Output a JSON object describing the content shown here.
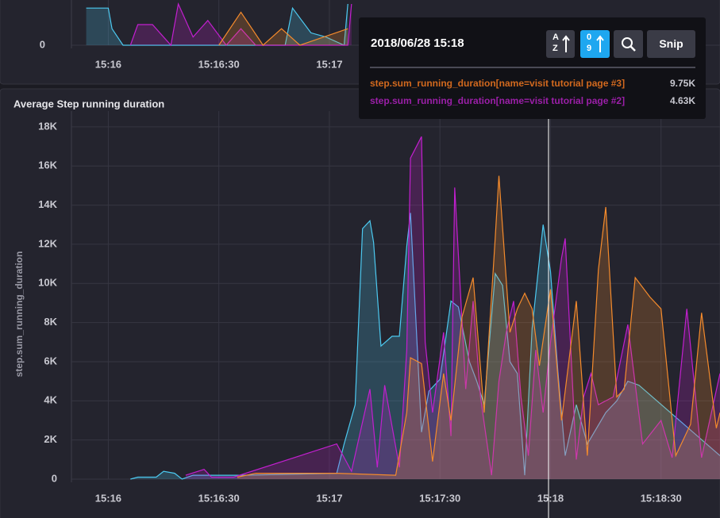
{
  "chart_data": [
    {
      "type": "line",
      "xlim": [
        "15:15:50",
        "15:18:46"
      ],
      "xticks": [
        "15:16",
        "15:16:30",
        "15:17"
      ],
      "ylim": [
        0,
        10
      ],
      "yticks": [
        0
      ],
      "grid": true,
      "series": [
        {
          "color": "#4cc9f0",
          "x": [
            "15:15:54",
            "15:16:00",
            "15:16:01",
            "15:16:04",
            "15:16:15",
            "15:16:48",
            "15:16:50",
            "15:16:55",
            "15:16:59",
            "15:17:04",
            "15:17:05"
          ],
          "values": [
            9,
            9,
            4,
            0,
            0,
            0,
            9,
            3,
            2,
            0,
            10
          ]
        },
        {
          "color": "#c21fcf",
          "x": [
            "15:16:06",
            "15:16:08",
            "15:16:12",
            "15:16:17",
            "15:16:19",
            "15:16:23",
            "15:16:27",
            "15:16:32",
            "15:16:36",
            "15:16:40",
            "15:17:05",
            "15:17:06"
          ],
          "values": [
            0,
            5,
            5,
            0,
            10,
            2,
            6,
            0,
            4,
            0,
            0,
            10
          ]
        },
        {
          "color": "#f58b2c",
          "x": [
            "15:16:30",
            "15:16:36",
            "15:16:42",
            "15:16:47",
            "15:16:52",
            "15:17:05"
          ],
          "values": [
            0,
            8,
            0,
            4,
            0,
            4
          ]
        }
      ]
    },
    {
      "type": "line",
      "title": "Average Step running duration",
      "ylabel": "step.sum_running_duration",
      "xlim": [
        "15:15:50",
        "15:18:46"
      ],
      "xticks": [
        "15:16",
        "15:16:30",
        "15:17",
        "15:17:30",
        "15:18",
        "15:18:30"
      ],
      "ylim": [
        0,
        18400
      ],
      "yticks": [
        0,
        {
          "value": 2000,
          "label": "2K"
        },
        {
          "value": 4000,
          "label": "4K"
        },
        {
          "value": 6000,
          "label": "6K"
        },
        {
          "value": 8000,
          "label": "8K"
        },
        {
          "value": 10000,
          "label": "10K"
        },
        {
          "value": 12000,
          "label": "12K"
        },
        {
          "value": 14000,
          "label": "14K"
        },
        {
          "value": 16000,
          "label": "16K"
        },
        {
          "value": 18000,
          "label": "18K"
        }
      ],
      "grid": true,
      "series": [
        {
          "color": "#4cc9f0",
          "x": [
            "15:16:06",
            "15:16:08",
            "15:16:13",
            "15:16:15",
            "15:16:18",
            "15:16:20",
            "15:16:23",
            "15:16:25",
            "15:16:36",
            "15:17:02",
            "15:17:04",
            "15:17:07",
            "15:17:09",
            "15:17:11",
            "15:17:12",
            "15:17:14",
            "15:17:17",
            "15:17:19",
            "15:17:21",
            "15:17:22",
            "15:17:25",
            "15:17:27",
            "15:17:30",
            "15:17:33",
            "15:17:35",
            "15:17:38",
            "15:17:40",
            "15:17:42",
            "15:17:45",
            "15:17:47",
            "15:17:49",
            "15:17:51",
            "15:17:53",
            "15:17:55",
            "15:17:57",
            "15:17:58",
            "15:18:00",
            "15:18:02",
            "15:18:04",
            "15:18:07",
            "15:18:10",
            "15:18:15",
            "15:18:18",
            "15:18:21",
            "15:18:24",
            "15:18:46"
          ],
          "values": [
            0,
            100,
            100,
            400,
            300,
            0,
            200,
            200,
            200,
            300,
            1800,
            3800,
            12800,
            13200,
            12100,
            6800,
            7300,
            7300,
            11900,
            13600,
            2400,
            4500,
            5100,
            9100,
            8800,
            6000,
            5000,
            3800,
            10500,
            9900,
            6000,
            5400,
            200,
            7700,
            11200,
            13000,
            10600,
            5500,
            1200,
            3800,
            1800,
            3400,
            4000,
            5000,
            4800,
            1200
          ]
        },
        {
          "color": "#c21fcf",
          "x": [
            "15:16:21",
            "15:16:26",
            "15:16:28",
            "15:16:34",
            "15:17:02",
            "15:17:06",
            "15:17:11",
            "15:17:13",
            "15:17:15",
            "15:17:19",
            "15:17:21",
            "15:17:22",
            "15:17:25",
            "15:17:26",
            "15:17:28",
            "15:17:31",
            "15:17:33",
            "15:17:34",
            "15:17:37",
            "15:17:39",
            "15:17:41",
            "15:17:44",
            "15:17:46",
            "15:17:48",
            "15:17:50",
            "15:17:52",
            "15:17:54",
            "15:17:56",
            "15:17:58",
            "15:18:00",
            "15:18:03",
            "15:18:04",
            "15:18:07",
            "15:18:09",
            "15:18:11",
            "15:18:13",
            "15:18:17",
            "15:18:21",
            "15:18:25",
            "15:18:30",
            "15:18:33",
            "15:18:37",
            "15:18:41",
            "15:18:46"
          ],
          "values": [
            200,
            500,
            100,
            100,
            1800,
            400,
            4600,
            600,
            4800,
            600,
            6600,
            16400,
            17500,
            7000,
            3400,
            7500,
            2200,
            14900,
            4600,
            9100,
            4200,
            200,
            5000,
            7500,
            9100,
            4200,
            1200,
            6600,
            3400,
            7000,
            11300,
            12300,
            1000,
            4200,
            5400,
            3800,
            4200,
            7900,
            1800,
            3000,
            1100,
            8700,
            1100,
            5400
          ]
        },
        {
          "color": "#f58b2c",
          "x": [
            "15:16:35",
            "15:16:40",
            "15:17:02",
            "15:17:18",
            "15:17:21",
            "15:17:22",
            "15:17:25",
            "15:17:28",
            "15:17:31",
            "15:17:33",
            "15:17:36",
            "15:17:39",
            "15:17:42",
            "15:17:45",
            "15:17:46",
            "15:17:49",
            "15:17:51",
            "15:17:53",
            "15:17:55",
            "15:17:57",
            "15:18:00",
            "15:18:03",
            "15:18:07",
            "15:18:10",
            "15:18:13",
            "15:18:15",
            "15:18:18",
            "15:18:20",
            "15:18:23",
            "15:18:27",
            "15:18:30",
            "15:18:34",
            "15:18:38",
            "15:18:41",
            "15:18:45",
            "15:18:46"
          ],
          "values": [
            100,
            300,
            300,
            200,
            3400,
            6200,
            5900,
            900,
            5400,
            3000,
            8300,
            10300,
            3400,
            12300,
            15500,
            7500,
            8700,
            9500,
            8700,
            5800,
            9700,
            3000,
            9100,
            1200,
            10700,
            13900,
            4200,
            4600,
            10300,
            9300,
            8700,
            1200,
            2800,
            8500,
            2600,
            3400
          ]
        }
      ]
    }
  ],
  "tooltip": {
    "time": "2018/06/28 15:18",
    "sort_alpha": [
      "A",
      "Z"
    ],
    "sort_num": [
      "0",
      "9"
    ],
    "snip": "Snip",
    "items": [
      {
        "name": "step.sum_running_duration[name=visit tutorial page #3]",
        "value": "9.75K",
        "color": "#d2691e"
      },
      {
        "name": "step.sum_running_duration[name=visit tutorial page #2]",
        "value": "4.63K",
        "color": "#9b1fa8"
      }
    ]
  }
}
